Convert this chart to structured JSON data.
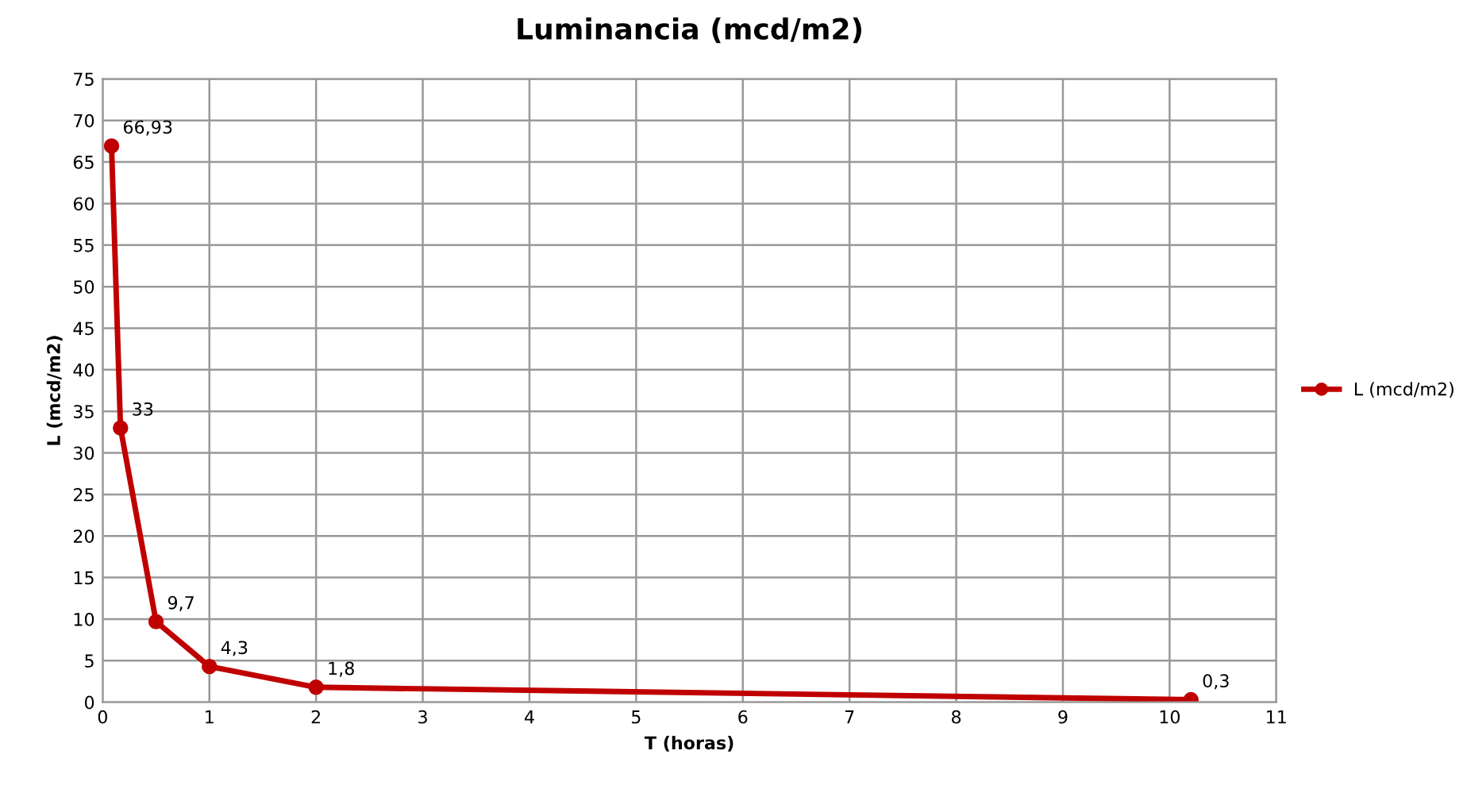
{
  "chart_data": {
    "type": "line",
    "title": "Luminancia (mcd/m2)",
    "xlabel": "T (horas)",
    "ylabel": "L (mcd/m2)",
    "x": [
      0.083,
      0.167,
      0.5,
      1,
      2,
      10.2
    ],
    "series": [
      {
        "name": "L (mcd/m2)",
        "color": "#c00000",
        "values": [
          66.93,
          33,
          9.7,
          4.3,
          1.8,
          0.3
        ],
        "value_labels": [
          "66,93",
          "33",
          "9,7",
          "4,3",
          "1,8",
          "0,3"
        ]
      }
    ],
    "xlim": [
      0,
      11
    ],
    "xticks": [
      0,
      1,
      2,
      3,
      4,
      5,
      6,
      7,
      8,
      9,
      10,
      11
    ],
    "ylim": [
      0,
      75
    ],
    "yticks": [
      0,
      5,
      10,
      15,
      20,
      25,
      30,
      35,
      40,
      45,
      50,
      55,
      60,
      65,
      70,
      75
    ],
    "grid": true,
    "legend": "right",
    "marker": "circle",
    "line_style": "solid"
  }
}
